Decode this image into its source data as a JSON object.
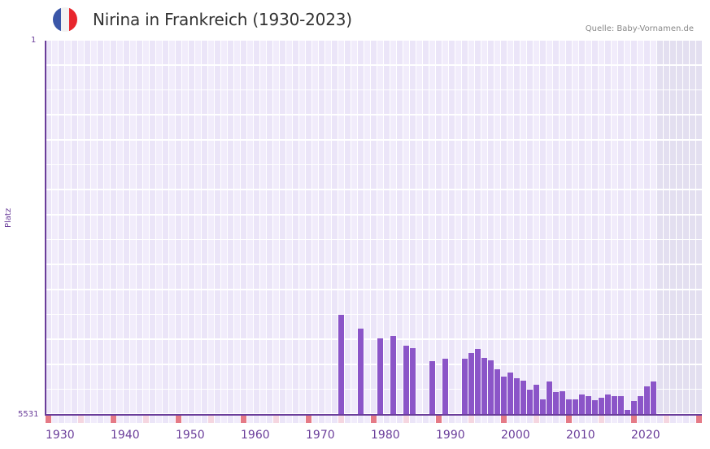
{
  "header": {
    "title": "Nirina in Frankreich (1930-2023)",
    "source": "Quelle: Baby-Vornamen.de",
    "flag": {
      "name": "france-flag",
      "colors": [
        "#3a56a8",
        "#f2f2f2",
        "#e8262d"
      ]
    }
  },
  "colors": {
    "bar": "#8b55c8",
    "axis": "#6a3d9a",
    "grid_a": "#f1ecfb",
    "grid_b": "#ebe5f8",
    "future_shade": "#e3dff0",
    "decade_tick": "#e57a86",
    "half_decade_tick": "#f5d6e0"
  },
  "axis": {
    "y_title": "Platz",
    "y_top_label": "1",
    "y_bottom_label": "5531",
    "x_labels": [
      "1930",
      "1940",
      "1950",
      "1960",
      "1970",
      "1980",
      "1990",
      "2000",
      "2010",
      "2020"
    ]
  },
  "chart_data": {
    "type": "bar",
    "title": "Nirina in Frankreich (1930-2023)",
    "xlabel": "",
    "ylabel": "Platz",
    "ylim": [
      5531,
      1
    ],
    "y_inverted": true,
    "x_range": [
      1930,
      2023
    ],
    "grid": true,
    "legend": null,
    "annotations": [
      "Quelle: Baby-Vornamen.de"
    ],
    "x": [
      1975,
      1978,
      1981,
      1983,
      1985,
      1986,
      1989,
      1991,
      1994,
      1995,
      1996,
      1997,
      1998,
      1999,
      2000,
      2001,
      2002,
      2003,
      2004,
      2005,
      2006,
      2007,
      2008,
      2009,
      2010,
      2011,
      2012,
      2013,
      2014,
      2015,
      2016,
      2017,
      2018,
      2019,
      2020,
      2021,
      2022,
      2023
    ],
    "values": [
      4052,
      4256,
      4400,
      4364,
      4509,
      4545,
      4737,
      4701,
      4701,
      4617,
      4557,
      4689,
      4725,
      4858,
      4966,
      4906,
      4990,
      5026,
      5158,
      5086,
      5303,
      5038,
      5194,
      5182,
      5303,
      5303,
      5230,
      5254,
      5315,
      5278,
      5230,
      5254,
      5254,
      5459,
      5327,
      5254,
      5110,
      5038
    ]
  }
}
